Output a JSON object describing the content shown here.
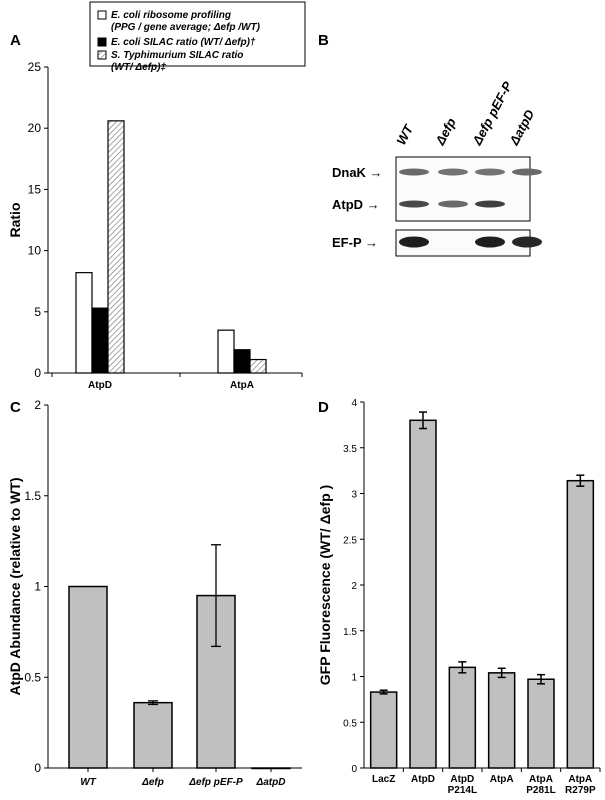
{
  "panels": {
    "a": "A",
    "b": "B",
    "c": "C",
    "d": "D"
  },
  "legend": {
    "items": [
      {
        "line1": "E. coli ribosome profiling",
        "line2": "(PPG / gene average;  Δefp /WT)",
        "style": "open"
      },
      {
        "line1": "E. coli  SILAC ratio (WT/ Δefp)†",
        "line2": "",
        "style": "solid"
      },
      {
        "line1": "S. Typhimurium SILAC ratio",
        "line2": "(WT/ Δefp)‡",
        "style": "hatched"
      }
    ]
  },
  "chart_data": [
    {
      "id": "A",
      "type": "bar",
      "ylabel": "Ratio",
      "ylim": [
        0,
        25
      ],
      "yticks": [
        0,
        5,
        10,
        15,
        20,
        25
      ],
      "categories": [
        "AtpD",
        "AtpA"
      ],
      "series": [
        {
          "name": "E. coli ribosome profiling (PPG / gene average; Δefp /WT)",
          "values": [
            8.2,
            3.5
          ],
          "fill": "open"
        },
        {
          "name": "E. coli SILAC ratio (WT/ Δefp)†",
          "values": [
            5.3,
            1.9
          ],
          "fill": "solid"
        },
        {
          "name": "S. Typhimurium SILAC ratio (WT/ Δefp)‡",
          "values": [
            20.6,
            1.1
          ],
          "fill": "hatched"
        }
      ],
      "grid": false,
      "legend_position": "top"
    },
    {
      "id": "C",
      "type": "bar",
      "ylabel": "AtpD Abundance (relative to WT)",
      "ylim": [
        0,
        2
      ],
      "yticks": [
        "0",
        "0.5",
        "1",
        "1.5",
        "2"
      ],
      "categories": [
        "WT",
        "Δefp",
        "Δefp pEF-P",
        "ΔatpD"
      ],
      "values": [
        1.0,
        0.36,
        0.95,
        0.0
      ],
      "errors": [
        0.0,
        0.01,
        0.28,
        0.0
      ],
      "bar_color": "#c0c0c0",
      "grid": false
    },
    {
      "id": "D",
      "type": "bar",
      "ylabel": "GFP Fluorescence  (WT/ Δefp )",
      "ylim": [
        0,
        4
      ],
      "yticks": [
        "0",
        "0.5",
        "1",
        "1.5",
        "2",
        "2.5",
        "3",
        "3.5",
        "4"
      ],
      "categories": [
        [
          "LacZ"
        ],
        [
          "AtpD"
        ],
        [
          "AtpD",
          "P214L"
        ],
        [
          "AtpA"
        ],
        [
          "AtpA",
          "P281L"
        ],
        [
          "AtpA",
          "R279P"
        ]
      ],
      "values": [
        0.83,
        3.8,
        1.1,
        1.04,
        0.97,
        3.14
      ],
      "errors": [
        0.02,
        0.09,
        0.06,
        0.05,
        0.05,
        0.06
      ],
      "bar_color": "#c0c0c0",
      "grid": false
    }
  ],
  "blot": {
    "lanes": [
      "WT",
      "Δefp",
      "Δefp pEF-P",
      "ΔatpD"
    ],
    "rows": [
      {
        "label": "DnaK →",
        "intensity": [
          0.55,
          0.5,
          0.5,
          0.55
        ]
      },
      {
        "label": "AtpD →",
        "intensity": [
          0.75,
          0.55,
          0.8,
          0.0
        ]
      },
      {
        "label": "EF-P →",
        "intensity": [
          1.0,
          0.0,
          1.0,
          0.95
        ]
      }
    ]
  }
}
